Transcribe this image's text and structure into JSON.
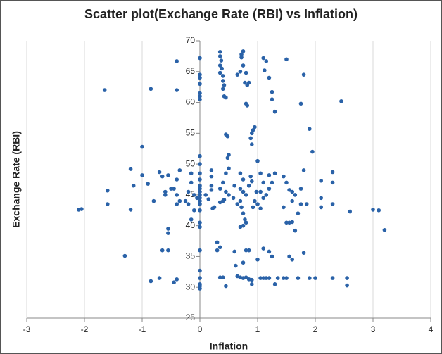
{
  "chart_data": {
    "type": "scatter",
    "title": "Scatter plot(Exchange Rate (RBI) vs Inflation)",
    "x_label": "Inflation",
    "y_label": "Exchange Rate (RBI)",
    "color": "#2a62a8",
    "grid": true,
    "xlim": [
      -3,
      4
    ],
    "xticks": [
      -3,
      -2,
      -1,
      0,
      1,
      2,
      3,
      4
    ],
    "ylim": [
      25,
      70
    ],
    "yticks": [
      25,
      30,
      35,
      40,
      45,
      50,
      55,
      60,
      65,
      70
    ],
    "x": [
      0,
      0,
      0,
      0,
      0,
      0,
      0,
      0,
      0,
      0,
      0,
      0,
      0,
      0,
      0,
      0,
      0,
      0,
      0,
      0,
      0,
      0,
      0,
      0,
      0,
      0,
      0,
      -0.15,
      -0.15,
      -0.2,
      -0.25,
      -0.2,
      -0.1,
      -0.15,
      -0.1,
      -0.05,
      -0.4,
      -0.4,
      -0.35,
      -0.4,
      -0.45,
      -0.4,
      -0.35,
      -0.4,
      -0.4,
      -0.45,
      -0.55,
      -0.5,
      -0.6,
      -0.55,
      -0.55,
      -0.55,
      -0.65,
      -0.6,
      -0.65,
      -0.7,
      -0.7,
      -0.85,
      -0.8,
      -0.85,
      -0.9,
      -1.0,
      -1.0,
      -1.2,
      -1.15,
      -1.2,
      -1.3,
      -1.6,
      -1.6,
      -1.65,
      -2.1,
      -2.05,
      0.35,
      0.35,
      0.37,
      0.35,
      0.38,
      0.35,
      0.4,
      0.42,
      0.4,
      0.42,
      0.45,
      0.4,
      0.45,
      0.48,
      0.5,
      0.48,
      0.5,
      0.45,
      0.4,
      0.35,
      0.45,
      0.5,
      0.4,
      0.35,
      0.42,
      0.3,
      0.35,
      0.3,
      0.35,
      0.45,
      0.4,
      0.2,
      0.2,
      0.2,
      0.2,
      0.25,
      0.22,
      0.1,
      0.15,
      0.65,
      0.7,
      0.72,
      0.75,
      0.72,
      0.75,
      0.8,
      0.78,
      0.82,
      0.85,
      0.8,
      0.82,
      0.9,
      0.92,
      0.95,
      0.88,
      0.9,
      0.7,
      0.75,
      0.7,
      0.75,
      0.8,
      0.7,
      0.72,
      0.75,
      0.78,
      0.75,
      0.8,
      0.7,
      0.8,
      0.85,
      0.75,
      0.6,
      0.62,
      0.65,
      0.7,
      0.75,
      0.8,
      0.85,
      0.9,
      0.9,
      0.6,
      0.58,
      0.65,
      0.85,
      0.88,
      0.9,
      0.95,
      0.92,
      0.98,
      1.1,
      1.15,
      1.12,
      1.2,
      1.25,
      1.25,
      1.3,
      1.0,
      1.05,
      1.1,
      1.05,
      1.1,
      1.15,
      1.2,
      1.25,
      1.0,
      1.05,
      1.2,
      1.3,
      1.1,
      1.2,
      1.25,
      1.0,
      1.05,
      1.1,
      1.15,
      1.2,
      1.3,
      1.35,
      1.5,
      1.45,
      1.5,
      1.55,
      1.6,
      1.65,
      1.6,
      1.45,
      1.5,
      1.55,
      1.6,
      1.65,
      1.55,
      1.6,
      1.5,
      1.45,
      1.7,
      1.75,
      1.8,
      1.9,
      1.95,
      1.8,
      1.75,
      1.75,
      1.8,
      1.85,
      1.9,
      2.0,
      1.7,
      2.1,
      2.1,
      2.1,
      2.3,
      2.3,
      2.3,
      2.3,
      2.45,
      2.55,
      2.6,
      2.55,
      3.0,
      3.1,
      3.2
    ],
    "values": [
      67.2,
      64.5,
      64,
      63,
      61.5,
      61,
      60.5,
      51.3,
      50,
      48.5,
      47.5,
      46.5,
      46,
      45.5,
      45,
      44.5,
      44,
      43.5,
      42.5,
      40.5,
      39.8,
      36,
      32.7,
      31.5,
      30.5,
      29.8,
      30.2,
      48.5,
      47,
      45.5,
      44,
      43.5,
      42.5,
      41,
      45,
      44.5,
      66.7,
      62,
      49,
      47.5,
      46,
      45,
      44,
      43.5,
      31.3,
      30.8,
      48.2,
      46,
      45.5,
      39.5,
      38.8,
      36,
      36,
      45,
      48,
      48.7,
      31.5,
      62.2,
      44,
      31,
      46.8,
      52.8,
      48.2,
      49.2,
      46.5,
      42.6,
      35.1,
      45.7,
      43.5,
      62,
      42.6,
      42.7,
      68.2,
      67.5,
      66.8,
      66,
      65.5,
      64.8,
      64.3,
      62.8,
      62.2,
      61,
      60.8,
      63.5,
      54.8,
      54.5,
      51.5,
      51,
      49.3,
      48.5,
      47,
      46,
      45.5,
      45,
      44,
      43.8,
      44.2,
      37.3,
      36.5,
      36,
      31.6,
      30.2,
      31.6,
      49,
      48,
      46.5,
      45.8,
      43,
      42.8,
      45,
      44.3,
      64.5,
      65,
      67.3,
      68.3,
      67.8,
      66,
      64.8,
      63.2,
      62.8,
      63.2,
      59.8,
      59.5,
      55,
      55.5,
      56,
      54.2,
      53.2,
      48.5,
      47.5,
      46,
      45.5,
      45,
      44,
      43,
      42,
      41,
      40,
      40.5,
      39.8,
      36,
      36,
      34,
      35.8,
      33.5,
      31.8,
      31.6,
      31.5,
      31.6,
      31.3,
      30.5,
      31.2,
      46.5,
      44.5,
      43.5,
      46.5,
      48,
      47.2,
      44,
      43,
      45.5,
      67.2,
      66.7,
      65.2,
      64,
      61.7,
      60.5,
      58.5,
      50.5,
      48.5,
      47,
      45.5,
      44.5,
      45,
      46,
      47,
      43.5,
      42.8,
      48.2,
      48.5,
      36.3,
      35.8,
      35,
      34.5,
      31.5,
      31.5,
      31.5,
      31.5,
      30.5,
      31.5,
      67,
      48,
      47,
      45.8,
      45.5,
      45,
      44,
      43,
      40.5,
      40.5,
      40.6,
      39.2,
      35,
      34.5,
      31.5,
      31.5,
      31.5,
      59.8,
      64.5,
      55.7,
      52,
      49,
      46,
      43.5,
      35.6,
      43.5,
      31.5,
      31.5,
      42,
      47.3,
      44.5,
      43,
      48.7,
      47,
      43.5,
      31.5,
      60.2,
      30.3,
      42.3,
      31.5,
      42.6,
      42.5,
      39.3
    ]
  }
}
